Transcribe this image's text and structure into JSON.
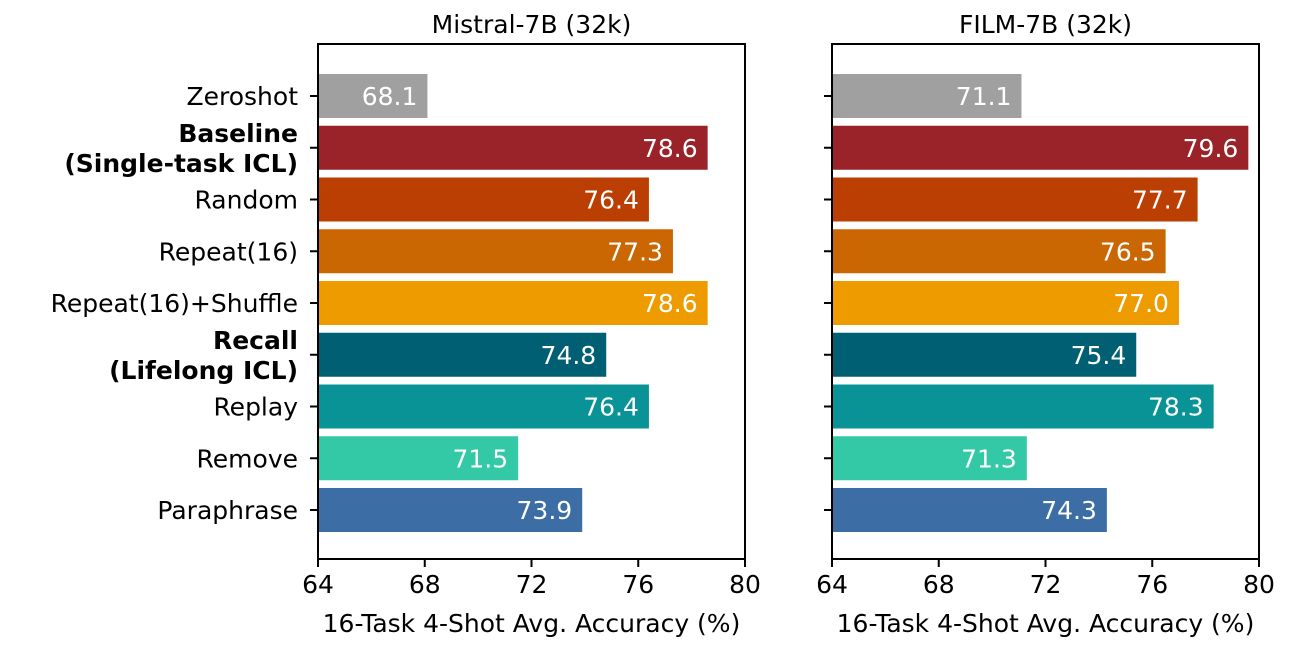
{
  "chart_data": [
    {
      "type": "bar",
      "orientation": "horizontal",
      "title": "Mistral-7B (32k)",
      "xlabel": "16-Task 4-Shot Avg. Accuracy (%)",
      "xlim": [
        64,
        80
      ],
      "xticks": [
        "64",
        "68",
        "72",
        "76",
        "80"
      ],
      "categories": [
        {
          "lines": [
            "Zeroshot"
          ],
          "bold": false
        },
        {
          "lines": [
            "Baseline",
            "(Single-task ICL)"
          ],
          "bold": true
        },
        {
          "lines": [
            "Random"
          ],
          "bold": false
        },
        {
          "lines": [
            "Repeat(16)"
          ],
          "bold": false
        },
        {
          "lines": [
            "Repeat(16)+Shuffle"
          ],
          "bold": false
        },
        {
          "lines": [
            "Recall",
            "(Lifelong ICL)"
          ],
          "bold": true
        },
        {
          "lines": [
            "Replay"
          ],
          "bold": false
        },
        {
          "lines": [
            "Remove"
          ],
          "bold": false
        },
        {
          "lines": [
            "Paraphrase"
          ],
          "bold": false
        }
      ],
      "values": [
        68.1,
        78.6,
        76.4,
        77.3,
        78.6,
        74.8,
        76.4,
        71.5,
        73.9
      ],
      "value_labels": [
        "68.1",
        "78.6",
        "76.4",
        "77.3",
        "78.6",
        "74.8",
        "76.4",
        "71.5",
        "73.9"
      ],
      "colors": [
        "#a0a0a0",
        "#9a2229",
        "#bb3e03",
        "#ca6702",
        "#ee9b00",
        "#005f73",
        "#0a9396",
        "#34c9a6",
        "#3c6ea5"
      ],
      "grid": false
    },
    {
      "type": "bar",
      "orientation": "horizontal",
      "title": "FILM-7B (32k)",
      "xlabel": "16-Task 4-Shot Avg. Accuracy (%)",
      "xlim": [
        64,
        80
      ],
      "xticks": [
        "64",
        "68",
        "72",
        "76",
        "80"
      ],
      "values": [
        71.1,
        79.6,
        77.7,
        76.5,
        77.0,
        75.4,
        78.3,
        71.3,
        74.3
      ],
      "value_labels": [
        "71.1",
        "79.6",
        "77.7",
        "76.5",
        "77.0",
        "75.4",
        "78.3",
        "71.3",
        "74.3"
      ],
      "colors": [
        "#a0a0a0",
        "#9a2229",
        "#bb3e03",
        "#ca6702",
        "#ee9b00",
        "#005f73",
        "#0a9396",
        "#34c9a6",
        "#3c6ea5"
      ],
      "grid": false
    }
  ]
}
